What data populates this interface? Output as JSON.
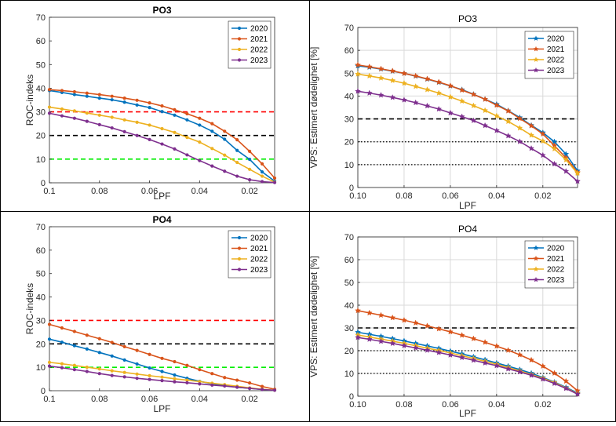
{
  "colors": {
    "s2020": "#0072BD",
    "s2021": "#D95319",
    "s2022": "#EDB120",
    "s2023": "#7E2F8E",
    "line_red": "#ff0000",
    "line_black": "#000000",
    "line_green": "#00ee00"
  },
  "chart_data": [
    {
      "id": "tl",
      "type": "line",
      "title": "PO3",
      "xlabel": "LPF",
      "ylabel": "ROC-indeks",
      "xticks": [
        "0.1",
        "0.08",
        "0.06",
        "0.04",
        "0.02"
      ],
      "xlim": [
        0.1,
        0.01
      ],
      "ylim": [
        0,
        70
      ],
      "yticks": [
        "0",
        "10",
        "20",
        "30",
        "40",
        "50",
        "60",
        "70"
      ],
      "grid": false,
      "legend": "top-right",
      "marker": "circle",
      "x": [
        0.1,
        0.095,
        0.09,
        0.085,
        0.08,
        0.075,
        0.07,
        0.065,
        0.06,
        0.055,
        0.05,
        0.045,
        0.04,
        0.035,
        0.03,
        0.025,
        0.02,
        0.015,
        0.01
      ],
      "series": [
        {
          "name": "2020",
          "values": [
            39.0,
            38.2,
            37.3,
            36.6,
            35.8,
            35.1,
            34.1,
            32.9,
            31.8,
            30.1,
            28.6,
            26.6,
            24.4,
            21.8,
            18.4,
            13.7,
            9.9,
            4.6,
            0.7
          ]
        },
        {
          "name": "2021",
          "values": [
            39.4,
            39.0,
            38.5,
            37.9,
            37.3,
            36.6,
            35.8,
            34.9,
            33.8,
            32.5,
            30.9,
            29.2,
            27.3,
            25.0,
            21.8,
            18.2,
            13.3,
            8.0,
            2.0
          ]
        },
        {
          "name": "2022",
          "values": [
            32.0,
            31.2,
            30.4,
            29.5,
            28.6,
            27.7,
            26.6,
            25.6,
            24.4,
            22.9,
            21.3,
            19.2,
            17.2,
            14.5,
            11.7,
            8.6,
            5.7,
            2.8,
            0.3
          ]
        },
        {
          "name": "2023",
          "values": [
            29.4,
            28.3,
            27.3,
            26.0,
            24.6,
            23.2,
            21.6,
            20.0,
            18.3,
            16.4,
            14.3,
            11.8,
            9.4,
            7.1,
            4.9,
            2.8,
            1.3,
            0.5,
            0.1
          ]
        }
      ],
      "hlines": [
        {
          "y": 30,
          "color": "red"
        },
        {
          "y": 20,
          "color": "black"
        },
        {
          "y": 10,
          "color": "green"
        }
      ]
    },
    {
      "id": "tr",
      "type": "line",
      "title": "PO3",
      "xlabel": "LPF",
      "ylabel": "VPS: Estimert dødelighet [%]",
      "xticks": [
        "0.10",
        "0.08",
        "0.06",
        "0.04",
        "0.02"
      ],
      "xlim": [
        0.1,
        0.005
      ],
      "ylim": [
        0,
        70
      ],
      "yticks": [
        "0",
        "10",
        "20",
        "30",
        "40",
        "50",
        "60",
        "70"
      ],
      "grid": true,
      "legend": "top-right",
      "marker": "star",
      "x": [
        0.1,
        0.095,
        0.09,
        0.085,
        0.08,
        0.075,
        0.07,
        0.065,
        0.06,
        0.055,
        0.05,
        0.045,
        0.04,
        0.035,
        0.03,
        0.025,
        0.02,
        0.015,
        0.01,
        0.005
      ],
      "series": [
        {
          "name": "2020",
          "values": [
            53.2,
            52.6,
            51.8,
            50.9,
            49.9,
            48.7,
            47.4,
            46.0,
            44.4,
            42.8,
            40.8,
            38.6,
            36.4,
            33.6,
            30.6,
            27.2,
            24.0,
            20.0,
            14.6,
            7.3
          ]
        },
        {
          "name": "2021",
          "values": [
            53.6,
            52.8,
            51.9,
            51.0,
            49.9,
            48.8,
            47.5,
            46.1,
            44.5,
            42.6,
            40.7,
            38.6,
            36.0,
            33.5,
            30.2,
            27.0,
            23.4,
            18.3,
            13.0,
            6.6
          ]
        },
        {
          "name": "2022",
          "values": [
            49.6,
            48.8,
            47.9,
            46.8,
            45.6,
            44.2,
            42.8,
            41.3,
            39.6,
            37.8,
            35.8,
            33.7,
            31.3,
            28.9,
            26.0,
            22.9,
            20.3,
            16.9,
            12.1,
            6.2
          ]
        },
        {
          "name": "2023",
          "values": [
            42.1,
            41.3,
            40.4,
            39.4,
            38.3,
            37.1,
            35.7,
            34.3,
            32.6,
            31.0,
            29.3,
            27.1,
            24.9,
            22.6,
            20.1,
            17.1,
            14.1,
            10.3,
            7.1,
            2.7
          ]
        }
      ],
      "hlines": [
        {
          "y": 30,
          "color": "black-dashed"
        },
        {
          "y": 20,
          "color": "black-dotted"
        },
        {
          "y": 10,
          "color": "black-dotted"
        }
      ]
    },
    {
      "id": "bl",
      "type": "line",
      "title": "PO4",
      "xlabel": "LPF",
      "ylabel": "ROC-indeks",
      "xticks": [
        "0.1",
        "0.08",
        "0.06",
        "0.04",
        "0.02"
      ],
      "xlim": [
        0.1,
        0.01
      ],
      "ylim": [
        0,
        70
      ],
      "yticks": [
        "0",
        "10",
        "20",
        "30",
        "40",
        "50",
        "60",
        "70"
      ],
      "grid": false,
      "legend": "top-right",
      "marker": "circle",
      "x": [
        0.1,
        0.095,
        0.09,
        0.085,
        0.08,
        0.075,
        0.07,
        0.065,
        0.06,
        0.055,
        0.05,
        0.045,
        0.04,
        0.035,
        0.03,
        0.025,
        0.02,
        0.015,
        0.01
      ],
      "series": [
        {
          "name": "2020",
          "values": [
            22.0,
            20.7,
            19.2,
            17.8,
            16.3,
            14.8,
            13.1,
            11.4,
            9.7,
            8.2,
            6.7,
            5.3,
            4.0,
            3.0,
            2.2,
            1.5,
            1.0,
            0.5,
            0.2
          ]
        },
        {
          "name": "2021",
          "values": [
            28.3,
            26.8,
            25.3,
            23.7,
            22.2,
            20.6,
            18.8,
            17.2,
            15.5,
            13.8,
            12.4,
            10.8,
            9.0,
            7.3,
            5.6,
            4.5,
            3.3,
            1.8,
            0.6
          ]
        },
        {
          "name": "2022",
          "values": [
            12.1,
            11.5,
            10.8,
            10.0,
            9.3,
            8.5,
            7.8,
            7.1,
            6.4,
            5.8,
            5.1,
            4.5,
            3.9,
            3.2,
            2.6,
            1.9,
            1.2,
            0.6,
            0.2
          ]
        },
        {
          "name": "2023",
          "values": [
            10.5,
            9.8,
            9.0,
            8.2,
            7.3,
            6.5,
            5.9,
            5.3,
            4.8,
            4.3,
            3.8,
            3.4,
            2.9,
            2.4,
            2.0,
            1.5,
            1.0,
            0.5,
            0.2
          ]
        }
      ],
      "hlines": [
        {
          "y": 30,
          "color": "red"
        },
        {
          "y": 20,
          "color": "black"
        },
        {
          "y": 10,
          "color": "green"
        }
      ]
    },
    {
      "id": "br",
      "type": "line",
      "title": "PO4",
      "xlabel": "LPF",
      "ylabel": "VPS: Estimert dødelighet [%]",
      "xticks": [
        "0.10",
        "0.08",
        "0.06",
        "0.04",
        "0.02"
      ],
      "xlim": [
        0.1,
        0.005
      ],
      "ylim": [
        0,
        70
      ],
      "yticks": [
        "0",
        "10",
        "20",
        "30",
        "40",
        "50",
        "60",
        "70"
      ],
      "grid": true,
      "legend": "top-right",
      "marker": "star",
      "x": [
        0.1,
        0.095,
        0.09,
        0.085,
        0.08,
        0.075,
        0.07,
        0.065,
        0.06,
        0.055,
        0.05,
        0.045,
        0.04,
        0.035,
        0.03,
        0.025,
        0.02,
        0.015,
        0.01,
        0.005
      ],
      "series": [
        {
          "name": "2020",
          "values": [
            28.1,
            27.2,
            26.3,
            25.3,
            24.3,
            23.2,
            22.1,
            21.0,
            19.8,
            18.6,
            17.3,
            16.0,
            14.6,
            13.2,
            11.7,
            10.1,
            8.2,
            6.2,
            3.9,
            1.4
          ]
        },
        {
          "name": "2021",
          "values": [
            37.6,
            36.6,
            35.6,
            34.5,
            33.4,
            32.2,
            30.9,
            29.6,
            28.3,
            26.8,
            25.3,
            23.7,
            22.0,
            20.2,
            18.2,
            15.9,
            13.2,
            10.1,
            6.6,
            2.4
          ]
        },
        {
          "name": "2022",
          "values": [
            26.9,
            26.0,
            25.1,
            24.2,
            23.2,
            22.2,
            21.1,
            20.1,
            19.0,
            17.8,
            16.6,
            15.3,
            14.0,
            12.6,
            11.1,
            9.5,
            7.9,
            6.0,
            3.6,
            1.1
          ]
        },
        {
          "name": "2023",
          "values": [
            25.8,
            25.0,
            24.1,
            23.2,
            22.2,
            21.2,
            20.2,
            19.2,
            18.1,
            17.0,
            15.8,
            14.6,
            13.4,
            12.0,
            10.7,
            9.2,
            7.5,
            5.6,
            3.4,
            0.9
          ]
        }
      ],
      "hlines": [
        {
          "y": 30,
          "color": "black-dashed"
        },
        {
          "y": 20,
          "color": "black-dotted"
        },
        {
          "y": 10,
          "color": "black-dotted"
        }
      ]
    }
  ]
}
